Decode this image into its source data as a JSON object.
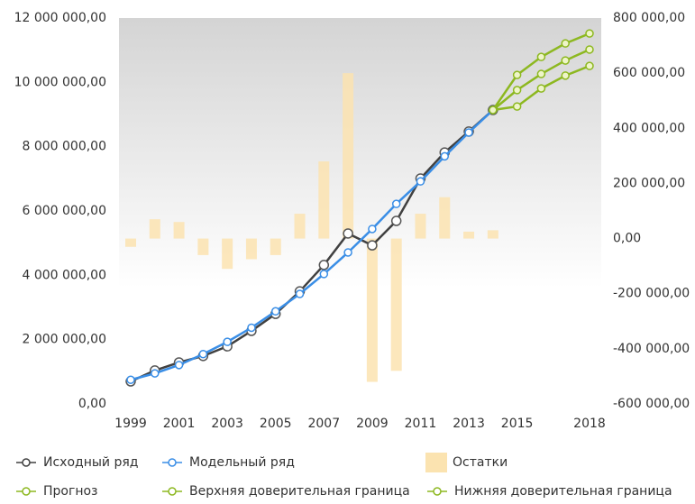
{
  "chart_data": {
    "type": "combo",
    "categories": [
      "1999",
      null,
      "2001",
      null,
      "2003",
      null,
      "2005",
      null,
      "2007",
      null,
      "2009",
      null,
      "2011",
      null,
      "2013",
      null,
      "2015",
      null,
      null,
      "2018"
    ],
    "ylim": [
      0,
      12000000
    ],
    "yticks": [
      {
        "value": 0,
        "label": "0,00"
      },
      {
        "value": 2000000,
        "label": "2 000 000,00"
      },
      {
        "value": 4000000,
        "label": "4 000 000,00"
      },
      {
        "value": 6000000,
        "label": "6 000 000,00"
      },
      {
        "value": 8000000,
        "label": "8 000 000,00"
      },
      {
        "value": 10000000,
        "label": "10 000 000,00"
      },
      {
        "value": 12000000,
        "label": "12 000 000,00"
      }
    ],
    "y2lim": [
      -600000,
      800000
    ],
    "y2ticks": [
      {
        "value": -600000,
        "label": "-600 000,00"
      },
      {
        "value": -400000,
        "label": "-400 000,00"
      },
      {
        "value": -200000,
        "label": "-200 000,00"
      },
      {
        "value": 0,
        "label": "0,00"
      },
      {
        "value": 200000,
        "label": "200 000,00"
      },
      {
        "value": 400000,
        "label": "400 000,00"
      },
      {
        "value": 600000,
        "label": "600 000,00"
      },
      {
        "value": 800000,
        "label": "800 000,00"
      }
    ],
    "grid": false,
    "series": [
      {
        "name": "Исходный ряд",
        "type": "line",
        "color": "#404040",
        "values": [
          700000,
          1040000,
          1290000,
          1490000,
          1790000,
          2270000,
          2800000,
          3500000,
          4320000,
          5300000,
          4930000,
          5690000,
          7010000,
          7820000,
          8470000,
          9140000,
          null,
          null,
          null,
          null
        ]
      },
      {
        "name": "Модельный ряд",
        "type": "line",
        "color": "#3a8ee6",
        "values": [
          750000,
          950000,
          1210000,
          1550000,
          1930000,
          2370000,
          2880000,
          3420000,
          4040000,
          4710000,
          5440000,
          6220000,
          6920000,
          7700000,
          8440000,
          9140000,
          null,
          null,
          null,
          null
        ]
      },
      {
        "name": "Остатки",
        "type": "bar",
        "axis": "y2",
        "color": "#fbe3b0",
        "values": [
          -30000,
          70000,
          60000,
          -60000,
          -110000,
          -75000,
          -60000,
          90000,
          280000,
          600000,
          -520000,
          -480000,
          90000,
          150000,
          25000,
          30000,
          null,
          null,
          null,
          null
        ]
      },
      {
        "name": "Прогноз",
        "type": "line",
        "color": "#8db820",
        "values": [
          null,
          null,
          null,
          null,
          null,
          null,
          null,
          null,
          null,
          null,
          null,
          null,
          null,
          null,
          null,
          9140000,
          9760000,
          10260000,
          10680000,
          11020000
        ]
      },
      {
        "name": "Верхняя доверительная граница",
        "type": "line",
        "color": "#8db820",
        "values": [
          null,
          null,
          null,
          null,
          null,
          null,
          null,
          null,
          null,
          null,
          null,
          null,
          null,
          null,
          null,
          9140000,
          10230000,
          10790000,
          11210000,
          11520000
        ]
      },
      {
        "name": "Нижняя доверительная граница",
        "type": "line",
        "color": "#8db820",
        "values": [
          null,
          null,
          null,
          null,
          null,
          null,
          null,
          null,
          null,
          null,
          null,
          null,
          null,
          null,
          null,
          9140000,
          9250000,
          9810000,
          10210000,
          10510000
        ]
      }
    ]
  }
}
